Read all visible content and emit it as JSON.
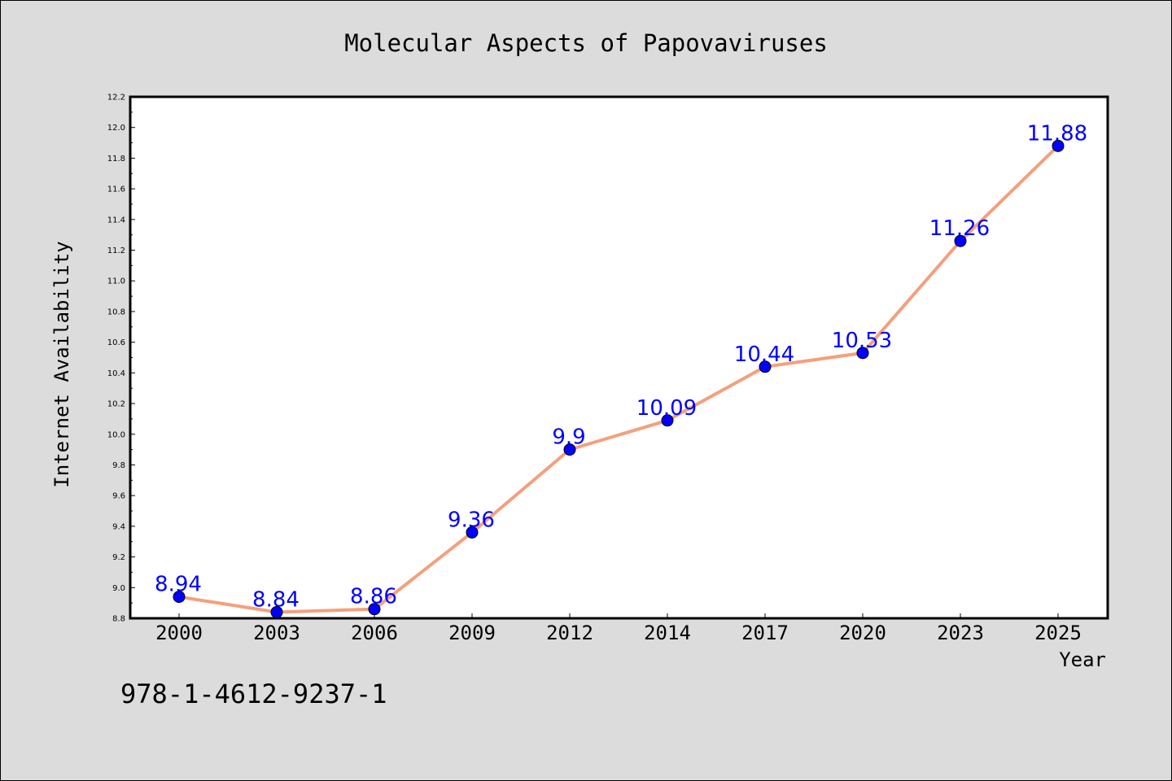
{
  "chart_data": {
    "type": "line",
    "title": "Molecular Aspects of Papovaviruses",
    "xlabel": "Year",
    "ylabel": "Internet Availability",
    "categories": [
      "2000",
      "2003",
      "2006",
      "2009",
      "2012",
      "2014",
      "2017",
      "2020",
      "2023",
      "2025"
    ],
    "series": [
      {
        "values": [
          8.94,
          8.84,
          8.86,
          9.36,
          9.9,
          10.09,
          10.44,
          10.53,
          11.26,
          11.88
        ],
        "data_labels": [
          "8.94",
          "8.84",
          "8.86",
          "9.36",
          "9.9",
          "10.09",
          "10.44",
          "10.53",
          "11.26",
          "11.88"
        ],
        "line_color": "#f4a07c",
        "marker_color": "#0000ff"
      }
    ],
    "ylim": [
      8.8,
      12.2
    ],
    "yticks": [
      "8.8",
      "9.0",
      "9.2",
      "9.4",
      "9.6",
      "9.8",
      "10.0",
      "10.2",
      "10.4",
      "10.6",
      "10.8",
      "11.0",
      "11.2",
      "11.4",
      "11.6",
      "11.8",
      "12.0",
      "12.2"
    ],
    "grid": false,
    "legend": "none"
  },
  "footer": {
    "isbn": "978-1-4612-9237-1"
  }
}
